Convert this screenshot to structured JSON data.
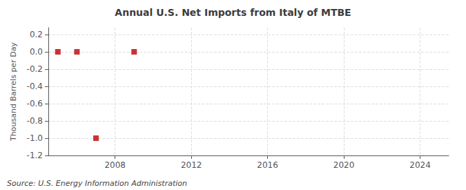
{
  "chart_data": {
    "type": "scatter",
    "title": "Annual U.S. Net Imports from Italy of MTBE",
    "y_label": "Thousand Barrels per Day",
    "annotations": [
      "Source: U.S. Energy Information Administration"
    ],
    "x": [
      2005,
      2006,
      2007,
      2009
    ],
    "values": [
      0.0,
      0.0,
      -1.0,
      0.0
    ],
    "color": "#c00000",
    "marker": "square",
    "xlim": [
      2004.5,
      2025.5
    ],
    "xticks": [
      2008,
      2012,
      2016,
      2020,
      2024
    ],
    "ylim": [
      -1.2,
      0.28
    ],
    "yticks": [
      0.2,
      {
        "value": 0.0,
        "label": "0.0"
      },
      -0.2,
      -0.4,
      -0.6,
      -0.8,
      {
        "value": -1.0,
        "label": "-1.0"
      },
      -1.2
    ],
    "grid": true
  }
}
